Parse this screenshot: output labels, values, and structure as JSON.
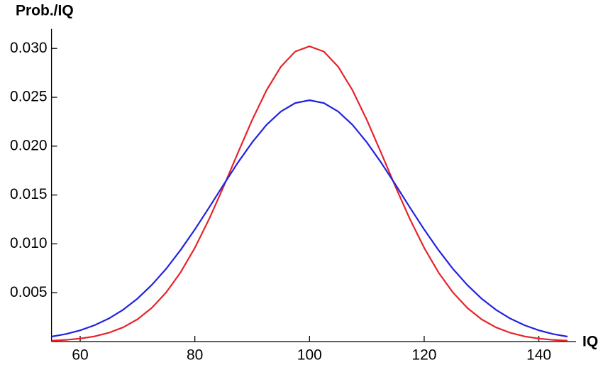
{
  "chart_data": {
    "type": "line",
    "y_label": "Prob./IQ",
    "x_label": "IQ",
    "x": [
      55,
      57.5,
      60,
      62.5,
      65,
      67.5,
      70,
      72.5,
      75,
      77.5,
      80,
      82.5,
      85,
      87.5,
      90,
      92.5,
      95,
      97.5,
      100,
      102.5,
      105,
      107.5,
      110,
      112.5,
      115,
      117.5,
      120,
      122.5,
      125,
      127.5,
      130,
      132.5,
      135,
      137.5,
      140,
      142.5,
      145
    ],
    "series": [
      {
        "color": "#e8232a",
        "values": [
          9e-05,
          0.00017,
          0.00031,
          0.00053,
          0.0009,
          0.00146,
          0.00228,
          0.00345,
          0.00503,
          0.00707,
          0.00959,
          0.01255,
          0.01584,
          0.0193,
          0.02268,
          0.02572,
          0.02813,
          0.02968,
          0.03022,
          0.02968,
          0.02813,
          0.02572,
          0.02268,
          0.0193,
          0.01584,
          0.01255,
          0.00959,
          0.00707,
          0.00503,
          0.00345,
          0.00228,
          0.00146,
          0.0009,
          0.00053,
          0.00031,
          0.00017,
          9e-05
        ]
      },
      {
        "color": "#2222e0",
        "values": [
          0.00051,
          0.00077,
          0.00115,
          0.00167,
          0.00236,
          0.00326,
          0.0044,
          0.0058,
          0.00745,
          0.00936,
          0.01147,
          0.01373,
          0.01605,
          0.01831,
          0.02039,
          0.02218,
          0.02354,
          0.02441,
          0.0247,
          0.02441,
          0.02354,
          0.02218,
          0.02039,
          0.01831,
          0.01605,
          0.01373,
          0.01147,
          0.00936,
          0.00745,
          0.0058,
          0.0044,
          0.00326,
          0.00236,
          0.00167,
          0.00115,
          0.00077,
          0.00051
        ]
      }
    ],
    "xlim": [
      55,
      145
    ],
    "xticks": [
      60,
      80,
      100,
      120,
      140
    ],
    "ylim": [
      0,
      0.032
    ],
    "yticks": [
      0.005,
      {
        "value": 0.01,
        "label": "0.010"
      },
      0.015,
      {
        "value": 0.02,
        "label": "0.020"
      },
      0.025,
      {
        "value": 0.03,
        "label": "0.030"
      }
    ]
  }
}
